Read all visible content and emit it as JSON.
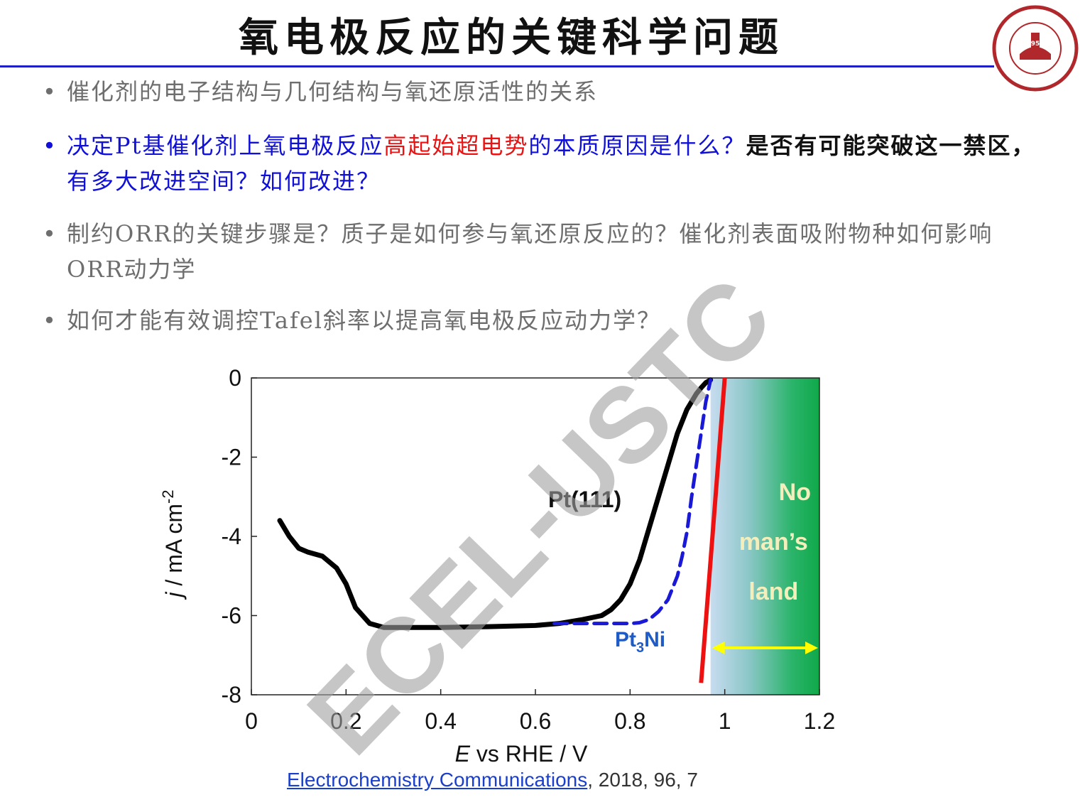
{
  "title": "氧电极反应的关键科学问题",
  "logo": {
    "year": "1958",
    "name": "University of Science and Technology of China"
  },
  "bullets": [
    {
      "parts": [
        {
          "text": "催化剂的电子结构与几何结构与氧还原活性的关系",
          "style": "gray"
        }
      ]
    },
    {
      "parts": [
        {
          "text": "决定Pt基催化剂上氧电极反应",
          "style": "blue"
        },
        {
          "text": "高起始超电势",
          "style": "red"
        },
        {
          "text": "的本质原因是什么？",
          "style": "blue"
        },
        {
          "text": "是否有可能突破这一禁区，",
          "style": "black"
        },
        {
          "text": "有多大改进空间？如何改进？",
          "style": "blue"
        }
      ]
    },
    {
      "parts": [
        {
          "text": "制约ORR的关键步骤是？质子是如何参与氧还原反应的？催化剂表面吸附物种如何影响ORR动力学",
          "style": "gray"
        }
      ]
    },
    {
      "parts": [
        {
          "text": "如何才能有效调控Tafel斜率以提高氧电极反应动力学？",
          "style": "gray"
        }
      ]
    }
  ],
  "watermark": "ECEL-USTC",
  "citation": {
    "journal": "Electrochemistry Communications",
    "rest": ", 2018, 96, 7"
  },
  "chart_data": {
    "type": "line",
    "xlabel_italic": "E",
    "xlabel_rest": " vs RHE / V",
    "ylabel_italic": "j",
    "ylabel_rest": " / mA cm",
    "ylabel_sup": "-2",
    "xlim": [
      0,
      1.2
    ],
    "ylim": [
      -8,
      0
    ],
    "xticks": [
      "0",
      "0.2",
      "0.4",
      "0.6",
      "0.8",
      "1",
      "1.2"
    ],
    "yticks": [
      "0",
      "-2",
      "-4",
      "-6",
      "-8"
    ],
    "series": [
      {
        "name": "Pt(111)",
        "color": "#000000",
        "style": "solid-thick",
        "x": [
          0.06,
          0.08,
          0.1,
          0.12,
          0.15,
          0.18,
          0.2,
          0.22,
          0.25,
          0.28,
          0.3,
          0.4,
          0.5,
          0.6,
          0.65,
          0.7,
          0.74,
          0.76,
          0.78,
          0.8,
          0.82,
          0.84,
          0.86,
          0.88,
          0.9,
          0.92,
          0.94,
          0.95,
          0.96,
          0.97
        ],
        "y": [
          -3.6,
          -4.0,
          -4.3,
          -4.4,
          -4.5,
          -4.8,
          -5.2,
          -5.8,
          -6.2,
          -6.3,
          -6.3,
          -6.3,
          -6.28,
          -6.25,
          -6.2,
          -6.1,
          -6.0,
          -5.85,
          -5.6,
          -5.2,
          -4.6,
          -3.8,
          -3.0,
          -2.2,
          -1.4,
          -0.8,
          -0.4,
          -0.25,
          -0.12,
          -0.05
        ]
      },
      {
        "name": "Pt3Ni",
        "label_main": "Pt",
        "label_sub": "3",
        "label_tail": "Ni",
        "color": "#1a1ad6",
        "style": "dashed",
        "x": [
          0.64,
          0.7,
          0.76,
          0.8,
          0.82,
          0.84,
          0.86,
          0.88,
          0.9,
          0.91,
          0.92,
          0.93,
          0.94,
          0.95,
          0.96,
          0.97
        ],
        "y": [
          -6.2,
          -6.2,
          -6.2,
          -6.2,
          -6.18,
          -6.1,
          -5.9,
          -5.6,
          -5.0,
          -4.5,
          -3.9,
          -3.0,
          -2.2,
          -1.4,
          -0.6,
          -0.05
        ]
      }
    ],
    "limit_line": {
      "color": "#ee1111",
      "x": [
        0.95,
        1.0
      ],
      "y": [
        -7.7,
        0.0
      ]
    },
    "no_mans_land": {
      "x_from": 0.97,
      "x_to": 1.22,
      "labels": [
        "No",
        "man’s",
        "land"
      ],
      "arrow_color": "#ffff00"
    }
  }
}
